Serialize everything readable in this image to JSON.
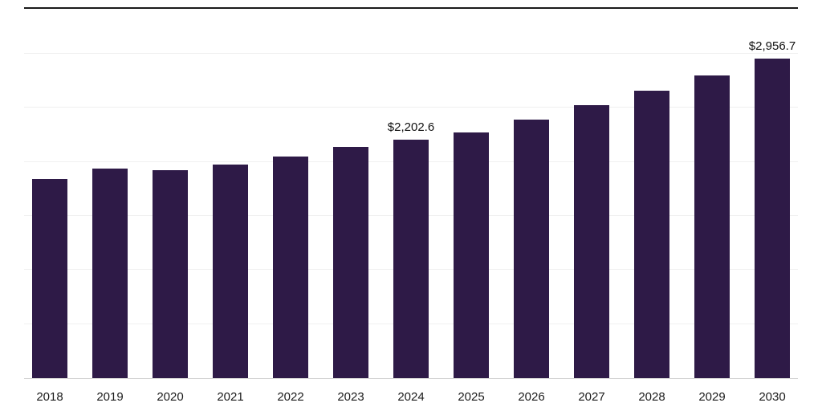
{
  "chart_data": {
    "type": "bar",
    "title": "",
    "xlabel": "",
    "ylabel": "",
    "categories": [
      "2018",
      "2019",
      "2020",
      "2021",
      "2022",
      "2023",
      "2024",
      "2025",
      "2026",
      "2027",
      "2028",
      "2029",
      "2030"
    ],
    "values": [
      1840,
      1940,
      1925,
      1975,
      2050,
      2140,
      2202.6,
      2275,
      2390,
      2525,
      2660,
      2800,
      2956.7
    ],
    "data_labels": {
      "2024": "$2,202.6",
      "2030": "$2,956.7"
    },
    "ylim": [
      0,
      3000
    ],
    "gridline_step": 500,
    "grid": true,
    "legend": false,
    "bar_color": "#2e1a47",
    "gridline_color": "#f0f0f0",
    "axis_line_color": "#d4d4d4",
    "label_color": "#111111"
  }
}
